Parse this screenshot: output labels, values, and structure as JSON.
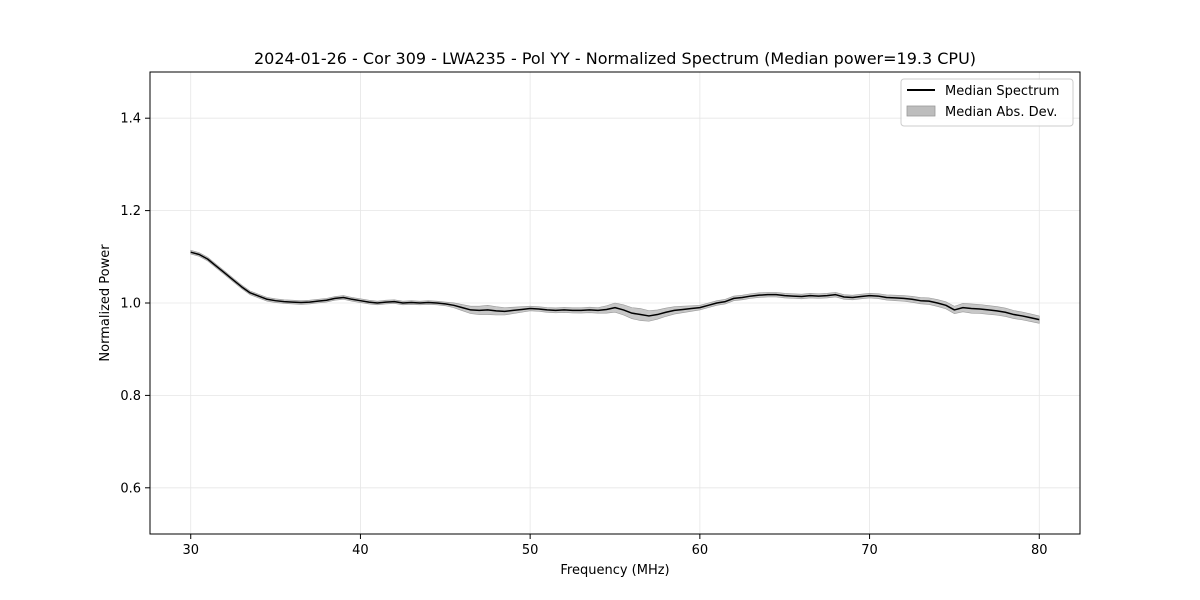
{
  "chart_data": {
    "type": "line",
    "title": "2024-01-26 - Cor 309 - LWA235 - Pol YY - Normalized Spectrum (Median power=19.3 CPU)",
    "xlabel": "Frequency (MHz)",
    "ylabel": "Normalized Power",
    "xlim": [
      27.6,
      82.4
    ],
    "ylim": [
      0.5,
      1.5
    ],
    "xticks": [
      30,
      40,
      50,
      60,
      70,
      80
    ],
    "xtick_labels": [
      "30",
      "40",
      "50",
      "60",
      "70",
      "80"
    ],
    "yticks": [
      0.6,
      0.8,
      1.0,
      1.2,
      1.4
    ],
    "ytick_labels": [
      "0.6",
      "0.8",
      "1.0",
      "1.2",
      "1.4"
    ],
    "grid": true,
    "legend_position": "top-right",
    "legend": [
      {
        "label": "Median Spectrum",
        "kind": "line",
        "color": "#000000"
      },
      {
        "label": "Median Abs. Dev.",
        "kind": "band",
        "color": "#bdbdbd"
      }
    ],
    "series": [
      {
        "name": "Median Spectrum",
        "color": "#000000",
        "x": [
          30,
          30.5,
          31,
          31.5,
          32,
          32.5,
          33,
          33.5,
          34,
          34.5,
          35,
          35.5,
          36,
          36.5,
          37,
          37.5,
          38,
          38.5,
          39,
          39.5,
          40,
          40.5,
          41,
          41.5,
          42,
          42.5,
          43,
          43.5,
          44,
          44.5,
          45,
          45.5,
          46,
          46.5,
          47,
          47.5,
          48,
          48.5,
          49,
          49.5,
          50,
          50.5,
          51,
          51.5,
          52,
          52.5,
          53,
          53.5,
          54,
          54.5,
          55,
          55.5,
          56,
          56.5,
          57,
          57.5,
          58,
          58.5,
          59,
          59.5,
          60,
          60.5,
          61,
          61.5,
          62,
          62.5,
          63,
          63.5,
          64,
          64.5,
          65,
          65.5,
          66,
          66.5,
          67,
          67.5,
          68,
          68.5,
          69,
          69.5,
          70,
          70.5,
          71,
          71.5,
          72,
          72.5,
          73,
          73.5,
          74,
          74.5,
          75,
          75.5,
          76,
          76.5,
          77,
          77.5,
          78,
          78.5,
          79,
          79.5,
          80
        ],
        "y": [
          1.11,
          1.105,
          1.095,
          1.08,
          1.065,
          1.05,
          1.035,
          1.022,
          1.015,
          1.008,
          1.005,
          1.003,
          1.002,
          1.001,
          1.002,
          1.004,
          1.006,
          1.01,
          1.012,
          1.008,
          1.005,
          1.002,
          1.0,
          1.002,
          1.003,
          1.0,
          1.001,
          1.0,
          1.001,
          1.0,
          0.998,
          0.995,
          0.99,
          0.985,
          0.984,
          0.985,
          0.983,
          0.982,
          0.984,
          0.986,
          0.988,
          0.987,
          0.985,
          0.984,
          0.985,
          0.984,
          0.984,
          0.985,
          0.984,
          0.986,
          0.99,
          0.985,
          0.978,
          0.975,
          0.972,
          0.975,
          0.98,
          0.984,
          0.986,
          0.988,
          0.99,
          0.995,
          1.0,
          1.003,
          1.01,
          1.012,
          1.015,
          1.017,
          1.018,
          1.018,
          1.016,
          1.015,
          1.014,
          1.016,
          1.015,
          1.016,
          1.018,
          1.013,
          1.012,
          1.014,
          1.016,
          1.015,
          1.012,
          1.011,
          1.01,
          1.008,
          1.005,
          1.004,
          1.0,
          0.995,
          0.985,
          0.99,
          0.988,
          0.987,
          0.985,
          0.983,
          0.98,
          0.975,
          0.972,
          0.968,
          0.964
        ]
      },
      {
        "name": "Median Abs. Dev.",
        "color": "#bdbdbd",
        "x": [
          30,
          35,
          40,
          45,
          46.5,
          47.5,
          50,
          54,
          55,
          56,
          56.5,
          57.5,
          60,
          65,
          70,
          75,
          76,
          78,
          80
        ],
        "y": [
          0.004,
          0.004,
          0.004,
          0.004,
          0.008,
          0.01,
          0.005,
          0.006,
          0.01,
          0.012,
          0.013,
          0.01,
          0.005,
          0.005,
          0.005,
          0.008,
          0.01,
          0.009,
          0.008
        ]
      }
    ]
  }
}
